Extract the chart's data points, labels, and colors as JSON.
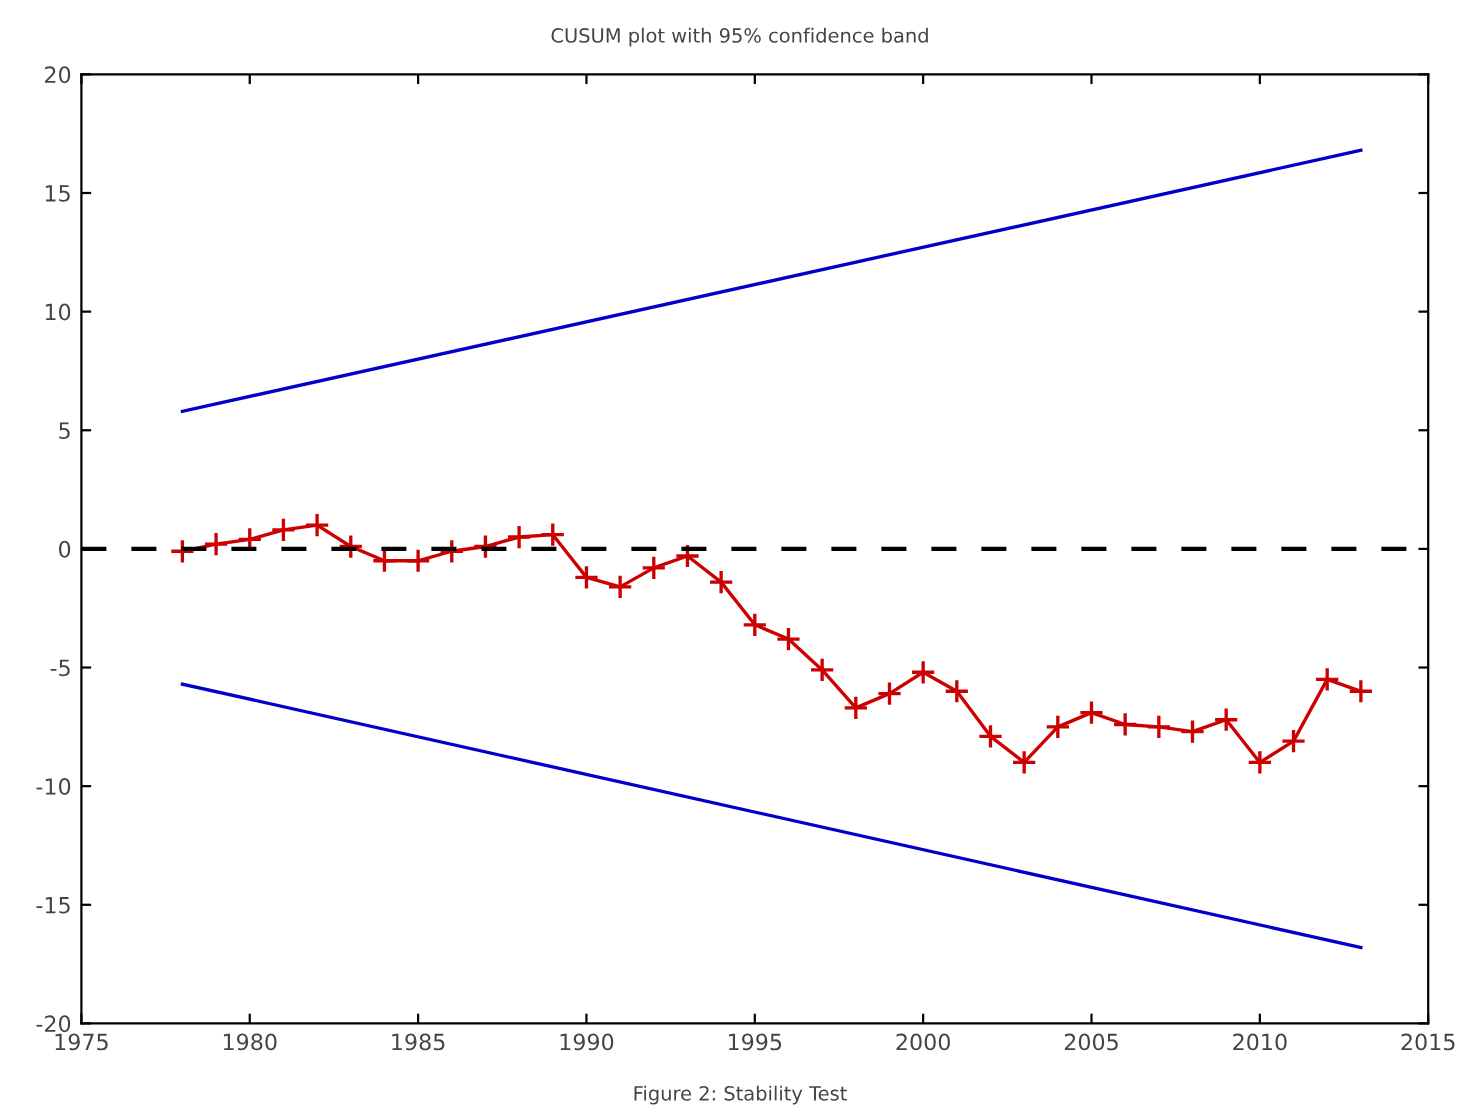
{
  "chart_data": {
    "type": "line",
    "title": "CUSUM plot with 95% confidence band",
    "xlim": [
      1975,
      2015
    ],
    "xticks": [
      1975,
      1980,
      1985,
      1990,
      1995,
      2000,
      2005,
      2010,
      2015
    ],
    "ylim": [
      -20,
      20
    ],
    "yticks": [
      -20,
      -15,
      -10,
      -5,
      0,
      5,
      10,
      15,
      20
    ],
    "grid": false,
    "legend": false,
    "series": [
      {
        "color": "#cc0000",
        "marker": "cross",
        "x": [
          1978,
          1979,
          1980,
          1981,
          1982,
          1983,
          1984,
          1985,
          1986,
          1987,
          1988,
          1989,
          1990,
          1991,
          1992,
          1993,
          1994,
          1995,
          1996,
          1997,
          1998,
          1999,
          2000,
          2001,
          2002,
          2003,
          2004,
          2005,
          2006,
          2007,
          2008,
          2009,
          2010,
          2011,
          2012,
          2013
        ],
        "values": [
          -0.1,
          0.2,
          0.4,
          0.8,
          1.0,
          0.1,
          -0.5,
          -0.5,
          -0.1,
          0.1,
          0.5,
          0.6,
          -1.2,
          -1.6,
          -0.8,
          -0.3,
          -1.4,
          -3.2,
          -3.8,
          -5.1,
          -6.7,
          -6.1,
          -5.2,
          -6.0,
          -7.9,
          -9.0,
          -7.5,
          -6.9,
          -7.4,
          -7.5,
          -7.7,
          -7.2,
          -9.0,
          -8.1,
          -5.5,
          -6.0
        ]
      },
      {
        "color": "#0000cc",
        "marker": "none",
        "x": [
          1978,
          2013
        ],
        "values": [
          5.8,
          16.8
        ]
      },
      {
        "color": "#0000cc",
        "marker": "none",
        "x": [
          1978,
          2013
        ],
        "values": [
          -5.7,
          -16.8
        ]
      }
    ],
    "ref_lines": [
      {
        "axis": "y",
        "value": 0,
        "color": "#000000",
        "line_style": "dashed"
      }
    ],
    "annotations": [
      "Figure 2: Stability Test"
    ]
  }
}
